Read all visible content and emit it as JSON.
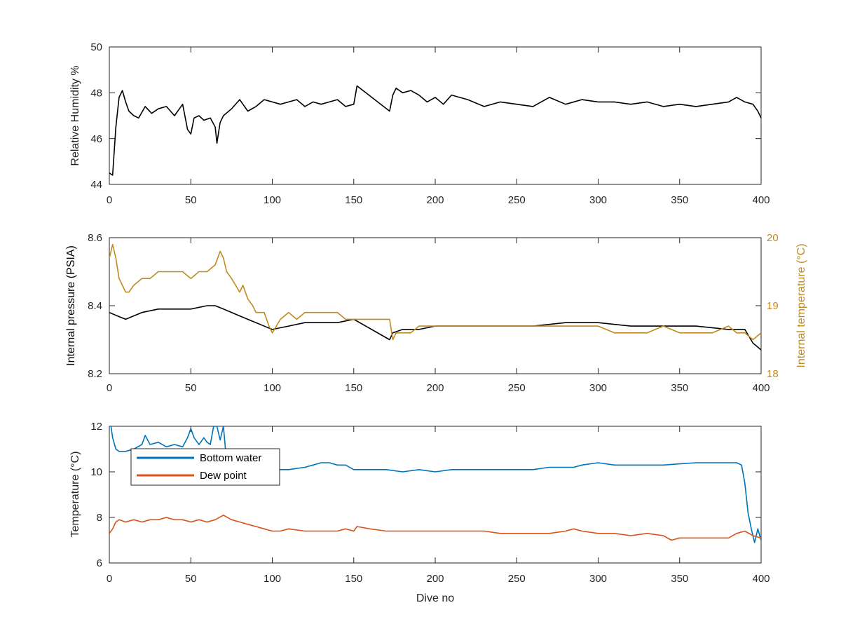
{
  "chart_data": [
    {
      "type": "line",
      "xlabel": "",
      "ylabel": "Relative Humidity %",
      "xlim": [
        0,
        400
      ],
      "ylim": [
        44,
        50
      ],
      "xticks": [
        0,
        50,
        100,
        150,
        200,
        250,
        300,
        350,
        400
      ],
      "yticks": [
        44,
        46,
        48,
        50
      ],
      "grid": false,
      "series": [
        {
          "color": "#000000",
          "x": [
            0,
            2,
            4,
            6,
            8,
            10,
            12,
            15,
            18,
            22,
            26,
            30,
            35,
            40,
            45,
            48,
            50,
            52,
            55,
            58,
            62,
            65,
            66,
            68,
            70,
            75,
            80,
            85,
            90,
            95,
            100,
            105,
            110,
            115,
            120,
            125,
            130,
            135,
            140,
            145,
            150,
            152,
            172,
            174,
            176,
            180,
            185,
            190,
            195,
            200,
            205,
            210,
            220,
            230,
            240,
            250,
            260,
            270,
            280,
            290,
            300,
            310,
            320,
            330,
            340,
            350,
            360,
            370,
            380,
            385,
            390,
            395,
            398,
            400
          ],
          "y": [
            44.5,
            44.4,
            46.5,
            47.8,
            48.1,
            47.6,
            47.2,
            47.0,
            46.9,
            47.4,
            47.1,
            47.3,
            47.4,
            47.0,
            47.5,
            46.4,
            46.2,
            46.9,
            47.0,
            46.8,
            46.9,
            46.5,
            45.8,
            46.7,
            47.0,
            47.3,
            47.7,
            47.2,
            47.4,
            47.7,
            47.6,
            47.5,
            47.6,
            47.7,
            47.4,
            47.6,
            47.5,
            47.6,
            47.7,
            47.4,
            47.5,
            48.3,
            47.2,
            47.9,
            48.2,
            48.0,
            48.1,
            47.9,
            47.6,
            47.8,
            47.5,
            47.9,
            47.7,
            47.4,
            47.6,
            47.5,
            47.4,
            47.8,
            47.5,
            47.7,
            47.6,
            47.6,
            47.5,
            47.6,
            47.4,
            47.5,
            47.4,
            47.5,
            47.6,
            47.8,
            47.6,
            47.5,
            47.2,
            46.9
          ]
        }
      ]
    },
    {
      "type": "line",
      "xlabel": "",
      "ylabel": "Internal pressure (PSIA)",
      "ylabel_right": "Internal temperature (°C)",
      "xlim": [
        0,
        400
      ],
      "ylim": [
        8.2,
        8.6
      ],
      "ylim_right": [
        18,
        20
      ],
      "xticks": [
        0,
        50,
        100,
        150,
        200,
        250,
        300,
        350,
        400
      ],
      "yticks": [
        8.2,
        8.4,
        8.6
      ],
      "yticks_right": [
        18,
        19,
        20
      ],
      "grid": false,
      "series": [
        {
          "axis": "left",
          "color": "#000000",
          "x": [
            0,
            5,
            10,
            20,
            30,
            40,
            50,
            60,
            65,
            70,
            80,
            90,
            100,
            110,
            120,
            130,
            140,
            150,
            172,
            174,
            180,
            190,
            200,
            220,
            240,
            260,
            280,
            300,
            320,
            340,
            360,
            380,
            390,
            395,
            400
          ],
          "y": [
            8.38,
            8.37,
            8.36,
            8.38,
            8.39,
            8.39,
            8.39,
            8.4,
            8.4,
            8.39,
            8.37,
            8.35,
            8.33,
            8.34,
            8.35,
            8.35,
            8.35,
            8.36,
            8.3,
            8.32,
            8.33,
            8.33,
            8.34,
            8.34,
            8.34,
            8.34,
            8.35,
            8.35,
            8.34,
            8.34,
            8.34,
            8.33,
            8.33,
            8.29,
            8.27
          ]
        },
        {
          "axis": "right",
          "color": "#C08A1E",
          "x": [
            0,
            2,
            4,
            6,
            8,
            10,
            12,
            15,
            20,
            25,
            30,
            35,
            40,
            45,
            50,
            55,
            60,
            65,
            68,
            70,
            72,
            75,
            80,
            82,
            85,
            88,
            90,
            95,
            98,
            100,
            105,
            110,
            115,
            120,
            125,
            130,
            135,
            140,
            145,
            150,
            160,
            172,
            174,
            176,
            180,
            185,
            190,
            200,
            220,
            240,
            260,
            280,
            300,
            310,
            320,
            330,
            340,
            350,
            360,
            370,
            380,
            385,
            390,
            395,
            400
          ],
          "y": [
            19.7,
            19.9,
            19.7,
            19.4,
            19.3,
            19.2,
            19.2,
            19.3,
            19.4,
            19.4,
            19.5,
            19.5,
            19.5,
            19.5,
            19.4,
            19.5,
            19.5,
            19.6,
            19.8,
            19.7,
            19.5,
            19.4,
            19.2,
            19.3,
            19.1,
            19.0,
            18.9,
            18.9,
            18.7,
            18.6,
            18.8,
            18.9,
            18.8,
            18.9,
            18.9,
            18.9,
            18.9,
            18.9,
            18.8,
            18.8,
            18.8,
            18.8,
            18.5,
            18.6,
            18.6,
            18.6,
            18.7,
            18.7,
            18.7,
            18.7,
            18.7,
            18.7,
            18.7,
            18.6,
            18.6,
            18.6,
            18.7,
            18.6,
            18.6,
            18.6,
            18.7,
            18.6,
            18.6,
            18.5,
            18.6
          ]
        }
      ]
    },
    {
      "type": "line",
      "xlabel": "Dive no",
      "ylabel": "Temperature (°C)",
      "xlim": [
        0,
        400
      ],
      "ylim": [
        6,
        12
      ],
      "xticks": [
        0,
        50,
        100,
        150,
        200,
        250,
        300,
        350,
        400
      ],
      "yticks": [
        6,
        8,
        10,
        12
      ],
      "grid": false,
      "legend": "top-left",
      "series": [
        {
          "name": "Bottom water",
          "color": "#0072BD",
          "x": [
            0,
            2,
            4,
            6,
            10,
            15,
            20,
            22,
            25,
            30,
            35,
            40,
            45,
            48,
            50,
            52,
            55,
            58,
            60,
            62,
            64,
            66,
            68,
            70,
            72,
            75,
            80,
            85,
            90,
            100,
            110,
            120,
            125,
            130,
            135,
            140,
            145,
            150,
            155,
            160,
            170,
            180,
            190,
            200,
            210,
            220,
            230,
            240,
            250,
            260,
            270,
            280,
            285,
            290,
            300,
            310,
            320,
            330,
            340,
            350,
            360,
            370,
            380,
            385,
            388,
            390,
            392,
            394,
            396,
            398,
            400
          ],
          "y": [
            12.5,
            11.5,
            11.0,
            10.9,
            10.9,
            11.0,
            11.2,
            11.6,
            11.2,
            11.3,
            11.1,
            11.2,
            11.1,
            11.5,
            11.9,
            11.5,
            11.2,
            11.5,
            11.3,
            11.2,
            12.0,
            12.0,
            11.4,
            12.0,
            10.4,
            10.2,
            10.2,
            10.2,
            10.1,
            10.1,
            10.1,
            10.2,
            10.3,
            10.4,
            10.4,
            10.3,
            10.3,
            10.1,
            10.1,
            10.1,
            10.1,
            10.0,
            10.1,
            10.0,
            10.1,
            10.1,
            10.1,
            10.1,
            10.1,
            10.1,
            10.2,
            10.2,
            10.2,
            10.3,
            10.4,
            10.3,
            10.3,
            10.3,
            10.3,
            10.35,
            10.4,
            10.4,
            10.4,
            10.4,
            10.3,
            9.5,
            8.2,
            7.5,
            6.9,
            7.5,
            7.0
          ]
        },
        {
          "name": "Dew point",
          "color": "#D95319",
          "x": [
            0,
            2,
            4,
            6,
            10,
            15,
            20,
            25,
            30,
            35,
            40,
            45,
            50,
            55,
            60,
            65,
            70,
            75,
            80,
            85,
            90,
            95,
            100,
            105,
            110,
            120,
            130,
            140,
            145,
            150,
            152,
            160,
            170,
            175,
            180,
            190,
            200,
            210,
            220,
            230,
            240,
            250,
            260,
            270,
            280,
            285,
            290,
            300,
            310,
            320,
            330,
            340,
            345,
            350,
            360,
            370,
            380,
            385,
            390,
            395,
            400
          ],
          "y": [
            7.3,
            7.5,
            7.8,
            7.9,
            7.8,
            7.9,
            7.8,
            7.9,
            7.9,
            8.0,
            7.9,
            7.9,
            7.8,
            7.9,
            7.8,
            7.9,
            8.1,
            7.9,
            7.8,
            7.7,
            7.6,
            7.5,
            7.4,
            7.4,
            7.5,
            7.4,
            7.4,
            7.4,
            7.5,
            7.4,
            7.6,
            7.5,
            7.4,
            7.4,
            7.4,
            7.4,
            7.4,
            7.4,
            7.4,
            7.4,
            7.3,
            7.3,
            7.3,
            7.3,
            7.4,
            7.5,
            7.4,
            7.3,
            7.3,
            7.2,
            7.3,
            7.2,
            7.0,
            7.1,
            7.1,
            7.1,
            7.1,
            7.3,
            7.4,
            7.2,
            7.1
          ]
        }
      ]
    }
  ]
}
